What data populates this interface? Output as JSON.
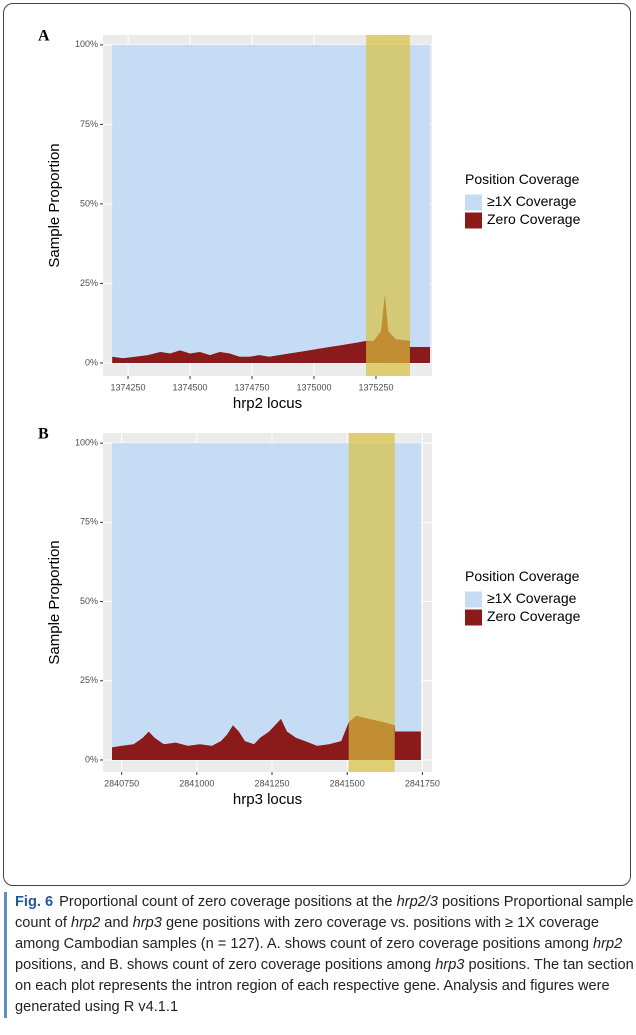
{
  "chart_data": [
    {
      "type": "area",
      "panel_label": "A",
      "x_label": "hrp2 locus",
      "y_label": "Sample Proportion",
      "legend_title": "Position Coverage",
      "legend": "right",
      "grid": true,
      "xlim": [
        1374149,
        1375476
      ],
      "xticks": [
        1374250,
        1374500,
        1374750,
        1375000,
        1375250
      ],
      "ylim": [
        -4.1,
        103.1
      ],
      "yticks": [
        {
          "value": 0,
          "label": "0%"
        },
        {
          "value": 25,
          "label": "25%"
        },
        {
          "value": 50,
          "label": "50%"
        },
        {
          "value": 75,
          "label": "75%"
        },
        {
          "value": 100,
          "label": "100%"
        }
      ],
      "highlight": {
        "xlim": [
          1375210,
          1375387
        ],
        "color": "#d8c040"
      },
      "x": [
        1374186,
        1374230,
        1374280,
        1374330,
        1374380,
        1374420,
        1374460,
        1374500,
        1374540,
        1374580,
        1374620,
        1374660,
        1374700,
        1374740,
        1374780,
        1374820,
        1374860,
        1374900,
        1374940,
        1374980,
        1375020,
        1375060,
        1375100,
        1375140,
        1375180,
        1375210,
        1375240,
        1375270,
        1375286,
        1375300,
        1375330,
        1375387,
        1375388,
        1375468
      ],
      "series": [
        {
          "name": "Zero Coverage",
          "color": "#8b1a1a",
          "values": [
            2,
            1.5,
            2,
            2.5,
            3.5,
            3,
            4,
            3,
            3.5,
            2.5,
            3.5,
            3,
            2,
            2,
            2.5,
            2,
            2.5,
            3,
            3.5,
            4,
            4.5,
            5,
            5.5,
            6,
            6.5,
            7,
            7,
            10,
            22,
            10,
            7.5,
            7,
            5,
            5
          ]
        },
        {
          "name": "≥1X Coverage",
          "color": "#c6dcf5",
          "values": [
            98,
            98.5,
            98,
            97.5,
            96.5,
            97,
            96,
            97,
            96.5,
            97.5,
            96.5,
            97,
            98,
            98,
            97.5,
            98,
            97.5,
            97,
            96.5,
            96,
            95.5,
            95,
            94.5,
            94,
            93.5,
            93,
            93,
            90,
            78,
            90,
            92.5,
            93,
            95,
            95
          ]
        }
      ]
    },
    {
      "type": "area",
      "panel_label": "B",
      "x_label": "hrp3 locus",
      "y_label": "Sample Proportion",
      "legend_title": "Position Coverage",
      "legend": "right",
      "grid": true,
      "xlim": [
        2840688,
        2841782
      ],
      "xticks": [
        2840750,
        2841000,
        2841250,
        2841500,
        2841750
      ],
      "ylim": [
        -3.8,
        103.2
      ],
      "yticks": [
        {
          "value": 0,
          "label": "0%"
        },
        {
          "value": 25,
          "label": "25%"
        },
        {
          "value": 50,
          "label": "50%"
        },
        {
          "value": 75,
          "label": "75%"
        },
        {
          "value": 100,
          "label": "100%"
        }
      ],
      "highlight": {
        "xlim": [
          2841505,
          2841658
        ],
        "color": "#d8c040"
      },
      "x": [
        2840718,
        2840750,
        2840790,
        2840820,
        2840840,
        2840860,
        2840890,
        2840930,
        2840970,
        2841010,
        2841050,
        2841080,
        2841100,
        2841120,
        2841140,
        2841160,
        2841190,
        2841210,
        2841240,
        2841260,
        2841280,
        2841300,
        2841330,
        2841360,
        2841400,
        2841440,
        2841480,
        2841505,
        2841530,
        2841570,
        2841620,
        2841658,
        2841660,
        2841745
      ],
      "series": [
        {
          "name": "Zero Coverage",
          "color": "#8b1a1a",
          "values": [
            4,
            4.5,
            5,
            7,
            9,
            7,
            5,
            5.5,
            4.5,
            5,
            4.5,
            6,
            8,
            11,
            9,
            6,
            5,
            7,
            9,
            11,
            13,
            9,
            7,
            6,
            4.5,
            5,
            6,
            12,
            14,
            13,
            12,
            11,
            9,
            9
          ]
        },
        {
          "name": "≥1X Coverage",
          "color": "#c6dcf5",
          "values": [
            96,
            95.5,
            95,
            93,
            91,
            93,
            95,
            94.5,
            95.5,
            95,
            95.5,
            94,
            92,
            89,
            91,
            94,
            95,
            93,
            91,
            89,
            87,
            91,
            93,
            94,
            95.5,
            95,
            94,
            88,
            86,
            87,
            88,
            89,
            91,
            91
          ]
        }
      ]
    }
  ],
  "caption": {
    "label": "Fig. 6",
    "runs": [
      {
        "text": "Proportional count of zero coverage positions at the ",
        "italic": false
      },
      {
        "text": "hrp2/3",
        "italic": true
      },
      {
        "text": " positions Proportional sample count of ",
        "italic": false
      },
      {
        "text": "hrp2",
        "italic": true
      },
      {
        "text": " and ",
        "italic": false
      },
      {
        "text": "hrp3",
        "italic": true
      },
      {
        "text": " gene positions with zero coverage vs. positions with ≥ 1X coverage among Cambodian samples (n = 127). A. shows count of zero coverage positions among ",
        "italic": false
      },
      {
        "text": "hrp2",
        "italic": true
      },
      {
        "text": " positions, and B. shows count of zero coverage positions among ",
        "italic": false
      },
      {
        "text": "hrp3",
        "italic": true
      },
      {
        "text": " positions. The tan section on each plot represents the intron region of each respective gene. Analysis and figures were generated using R v4.1.1",
        "italic": false
      }
    ]
  }
}
